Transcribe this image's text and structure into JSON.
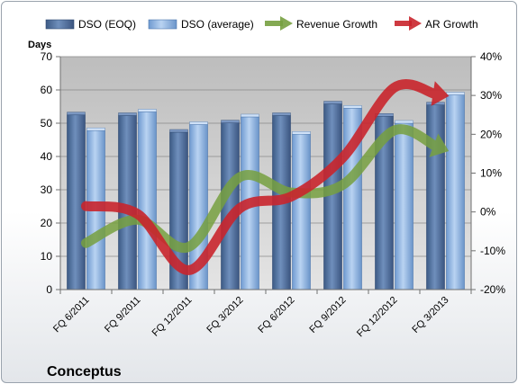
{
  "chart_data": {
    "type": "bar",
    "title": "Conceptus",
    "categories": [
      "FQ 6/2011",
      "FQ 9/2011",
      "FQ 12/2011",
      "FQ 3/2012",
      "FQ 6/2012",
      "FQ 9/2012",
      "FQ 12/2012",
      "FQ 3/2013"
    ],
    "ylabel": "Days",
    "ylim": [
      0,
      70
    ],
    "y_ticks": [
      "0",
      "10",
      "20",
      "30",
      "40",
      "50",
      "60",
      "70"
    ],
    "y2lim": [
      -20,
      40
    ],
    "y2_ticks": [
      "-20%",
      "-10%",
      "0%",
      "10%",
      "20%",
      "30%",
      "40%"
    ],
    "grid": true,
    "legend_position": "top",
    "series": [
      {
        "name": "DSO (EOQ)",
        "type": "bar",
        "axis": "left",
        "color": "#4f6d96",
        "values": [
          52.5,
          52.3,
          47.3,
          50.1,
          52.3,
          55.8,
          52.1,
          55.5
        ]
      },
      {
        "name": "DSO (average)",
        "type": "bar",
        "axis": "left",
        "color": "#8db4e2",
        "values": [
          47.8,
          53.4,
          49.6,
          51.9,
          46.7,
          54.5,
          50.0,
          58.5
        ]
      },
      {
        "name": "Revenue Growth",
        "type": "line",
        "axis": "right",
        "color": "#77a040",
        "unit": "%",
        "values": [
          -8.0,
          -2.0,
          -9.0,
          9.0,
          5.0,
          7.0,
          21.0,
          16.0
        ]
      },
      {
        "name": "AR Growth",
        "type": "line",
        "axis": "right",
        "color": "#c9252c",
        "unit": "%",
        "values": [
          1.5,
          -0.5,
          -15.0,
          1.0,
          4.0,
          14.0,
          32.0,
          30.0
        ]
      }
    ]
  }
}
